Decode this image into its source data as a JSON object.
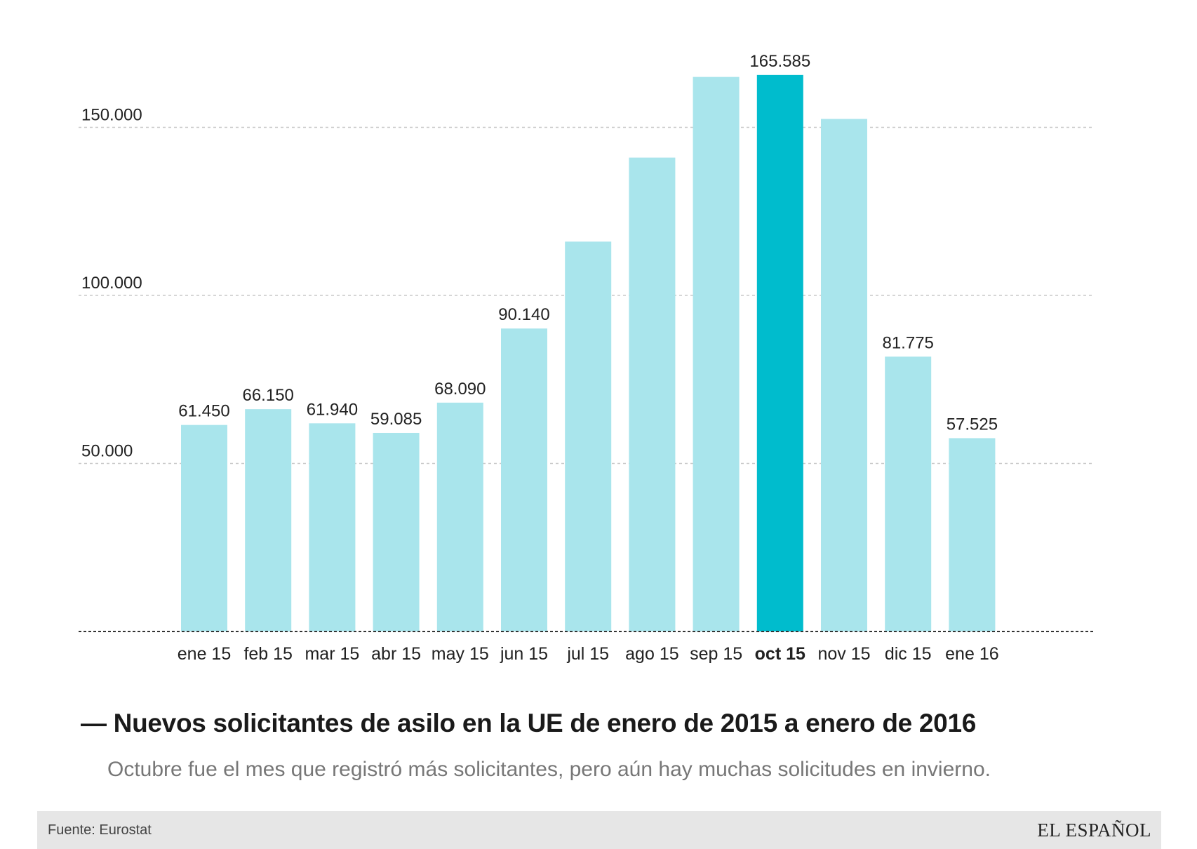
{
  "chart_data": {
    "type": "bar",
    "categories": [
      "ene 15",
      "feb 15",
      "mar 15",
      "abr 15",
      "may 15",
      "jun 15",
      "jul 15",
      "ago 15",
      "sep 15",
      "oct 15",
      "nov 15",
      "dic 15",
      "ene 16"
    ],
    "values": [
      61450,
      66150,
      61940,
      59085,
      68090,
      90140,
      116000,
      141000,
      165000,
      165585,
      152500,
      81775,
      57525
    ],
    "data_labels": [
      "61.450",
      "66.150",
      "61.940",
      "59.085",
      "68.090",
      "90.140",
      "",
      "",
      "",
      "165.585",
      "",
      "81.775",
      "57.525"
    ],
    "highlight_index": 9,
    "ylim": [
      0,
      170000
    ],
    "yticks": [
      50000,
      100000,
      150000
    ],
    "ytick_labels": [
      "50.000",
      "100.000",
      "150.000"
    ],
    "grid": true,
    "title": "— Nuevos solicitantes de asilo en la UE de enero de 2015 a enero de 2016",
    "subtitle": "Octubre fue el mes que registró más solicitantes, pero aún hay muchas solicitudes en invierno.",
    "xlabel": "",
    "ylabel": ""
  },
  "colors": {
    "bar": "#a9e5ec",
    "highlight": "#00bccd",
    "grid": "#c8c8c8",
    "baseline": "#333333"
  },
  "footer": {
    "source": "Fuente: Eurostat",
    "logo": "EL ESPAÑOL"
  }
}
